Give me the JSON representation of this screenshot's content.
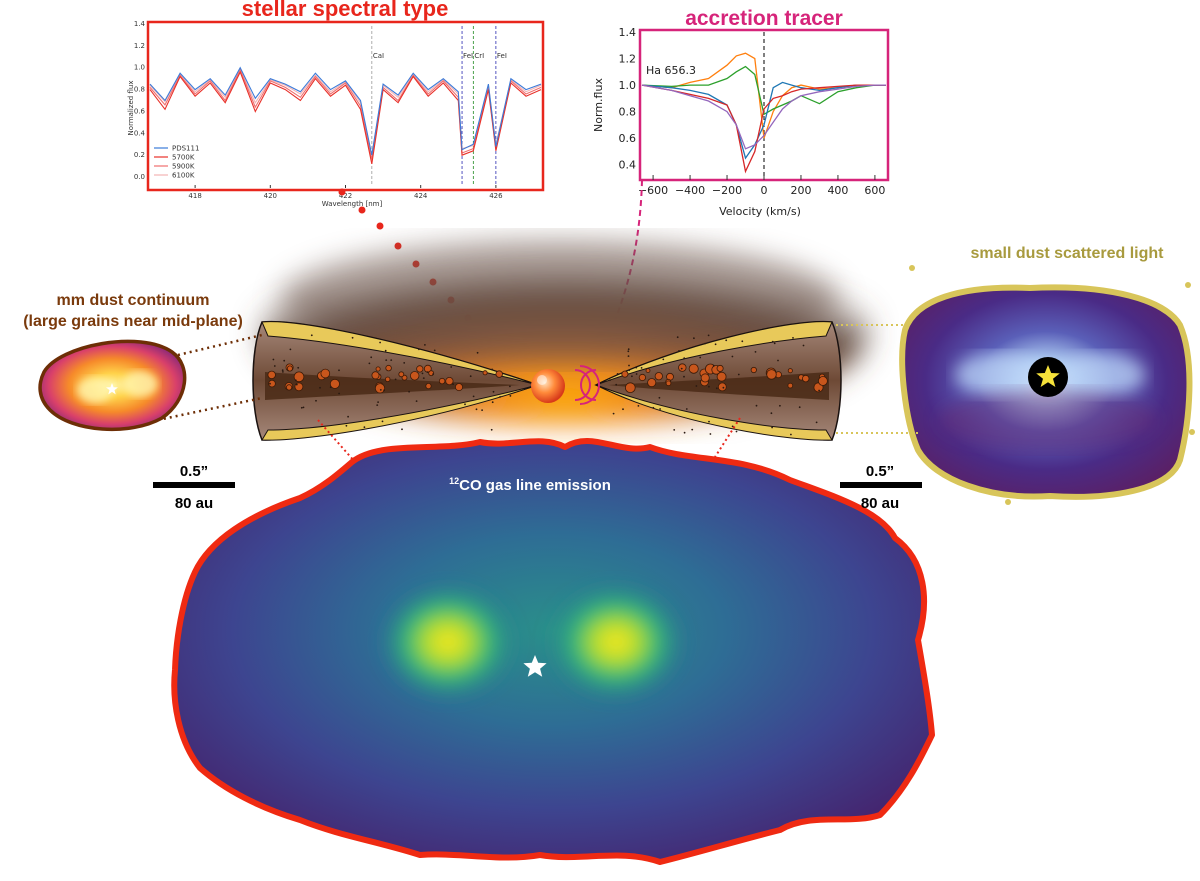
{
  "titles": {
    "stellar": "stellar spectral type",
    "accretion": "accretion tracer",
    "mm_dust_line1": "mm dust continuum",
    "mm_dust_line2": "(large grains near mid-plane)",
    "scattered": "small dust scattered light",
    "co_prefix": "12",
    "co_rest": "CO gas line emission"
  },
  "scalebars": {
    "left": {
      "angle": "0.5”",
      "distance": "80 au"
    },
    "right": {
      "angle": "0.5”",
      "distance": "80 au"
    }
  },
  "colors": {
    "stellar": "#e8261c",
    "accretion": "#d6247a",
    "mm_dust": "#7a3a0c",
    "scattered": "#a89a3e",
    "co_outline": "#ef2a12"
  },
  "chart_data": [
    {
      "type": "line",
      "title": "stellar spectral type",
      "xlabel": "Wavelength [nm]",
      "ylabel": "Normalized flux",
      "xlim": [
        416.8,
        427.2
      ],
      "ylim": [
        -0.1,
        1.4
      ],
      "xticks": [
        418,
        420,
        422,
        424,
        426
      ],
      "yticks": [
        0.0,
        0.2,
        0.4,
        0.6,
        0.8,
        1.0,
        1.2,
        1.4
      ],
      "legend_position": "bottom-left",
      "series": [
        {
          "name": "PDS111",
          "color": "#3b7bd9"
        },
        {
          "name": "5700K",
          "color": "#e8312a"
        },
        {
          "name": "5900K",
          "color": "#ef6f6f"
        },
        {
          "name": "6100K",
          "color": "#f4b3b3"
        }
      ],
      "line_ids": [
        {
          "label": "CaI",
          "x": 422.7,
          "color": "#999999"
        },
        {
          "label": "FeI",
          "x": 425.1,
          "color": "#2a2ab0"
        },
        {
          "label": "CrI",
          "x": 425.4,
          "color": "#1f8a1f"
        },
        {
          "label": "FeI",
          "x": 426.0,
          "color": "#2a2ab0"
        }
      ],
      "x": [
        416.8,
        417.2,
        417.6,
        418.0,
        418.4,
        418.8,
        419.2,
        419.6,
        420.0,
        420.4,
        420.8,
        421.2,
        421.6,
        422.0,
        422.4,
        422.7,
        423.0,
        423.4,
        423.8,
        424.2,
        424.6,
        425.0,
        425.1,
        425.4,
        425.8,
        426.0,
        426.4,
        426.8,
        427.2
      ],
      "series_values": [
        [
          0.85,
          0.7,
          0.95,
          0.8,
          0.9,
          0.75,
          1.0,
          0.72,
          0.9,
          0.85,
          0.78,
          0.95,
          0.8,
          0.88,
          0.7,
          0.2,
          0.85,
          0.75,
          0.95,
          0.8,
          0.9,
          0.78,
          0.25,
          0.3,
          0.85,
          0.28,
          0.9,
          0.8,
          0.85
        ],
        [
          0.8,
          0.62,
          0.92,
          0.74,
          0.86,
          0.68,
          0.96,
          0.6,
          0.86,
          0.8,
          0.7,
          0.9,
          0.74,
          0.84,
          0.62,
          0.12,
          0.8,
          0.68,
          0.92,
          0.74,
          0.86,
          0.7,
          0.2,
          0.24,
          0.8,
          0.24,
          0.86,
          0.74,
          0.8
        ],
        [
          0.82,
          0.66,
          0.93,
          0.76,
          0.88,
          0.7,
          0.98,
          0.64,
          0.88,
          0.82,
          0.73,
          0.92,
          0.76,
          0.86,
          0.65,
          0.16,
          0.82,
          0.7,
          0.93,
          0.76,
          0.88,
          0.73,
          0.22,
          0.26,
          0.82,
          0.26,
          0.88,
          0.76,
          0.82
        ],
        [
          0.84,
          0.69,
          0.94,
          0.78,
          0.89,
          0.73,
          0.99,
          0.68,
          0.89,
          0.84,
          0.76,
          0.93,
          0.78,
          0.87,
          0.68,
          0.2,
          0.84,
          0.73,
          0.94,
          0.78,
          0.89,
          0.76,
          0.26,
          0.29,
          0.84,
          0.3,
          0.89,
          0.78,
          0.84
        ]
      ]
    },
    {
      "type": "line",
      "title": "accretion tracer",
      "xlabel": "Velocity (km/s)",
      "ylabel": "Norm.flux",
      "xlim": [
        -660,
        660
      ],
      "ylim": [
        0.3,
        1.4
      ],
      "xticks": [
        -600,
        -400,
        -200,
        0,
        200,
        400,
        600
      ],
      "yticks": [
        0.4,
        0.6,
        0.8,
        1.0,
        1.2,
        1.4
      ],
      "annotation": "Ha 656.3",
      "x": [
        -660,
        -500,
        -400,
        -300,
        -200,
        -150,
        -100,
        -50,
        0,
        50,
        100,
        150,
        200,
        300,
        400,
        500,
        600,
        660
      ],
      "series": [
        {
          "color": "#ff7f0e",
          "values": [
            1.0,
            0.98,
            1.02,
            1.05,
            1.15,
            1.22,
            1.24,
            1.2,
            0.6,
            0.8,
            0.92,
            0.98,
            1.0,
            0.97,
            0.98,
            1.0,
            1.0,
            1.0
          ]
        },
        {
          "color": "#2ca02c",
          "values": [
            1.0,
            0.99,
            1.0,
            1.0,
            1.05,
            1.1,
            1.14,
            1.08,
            0.78,
            0.82,
            0.85,
            0.88,
            0.92,
            0.86,
            0.95,
            0.98,
            1.0,
            1.0
          ]
        },
        {
          "color": "#1f77b4",
          "values": [
            1.0,
            0.98,
            0.96,
            0.93,
            0.85,
            0.7,
            0.45,
            0.55,
            0.7,
            0.98,
            1.02,
            1.0,
            0.98,
            0.96,
            0.98,
            1.0,
            1.0,
            1.0
          ]
        },
        {
          "color": "#d62728",
          "values": [
            1.0,
            0.96,
            0.93,
            0.9,
            0.85,
            0.7,
            0.35,
            0.5,
            0.82,
            0.9,
            0.92,
            0.95,
            0.97,
            0.98,
            0.99,
            1.0,
            1.0,
            1.0
          ]
        },
        {
          "color": "#9467bd",
          "values": [
            1.0,
            0.96,
            0.92,
            0.88,
            0.8,
            0.7,
            0.52,
            0.55,
            0.62,
            0.72,
            0.82,
            0.88,
            0.92,
            0.95,
            0.97,
            0.99,
            1.0,
            1.0
          ]
        }
      ]
    }
  ]
}
